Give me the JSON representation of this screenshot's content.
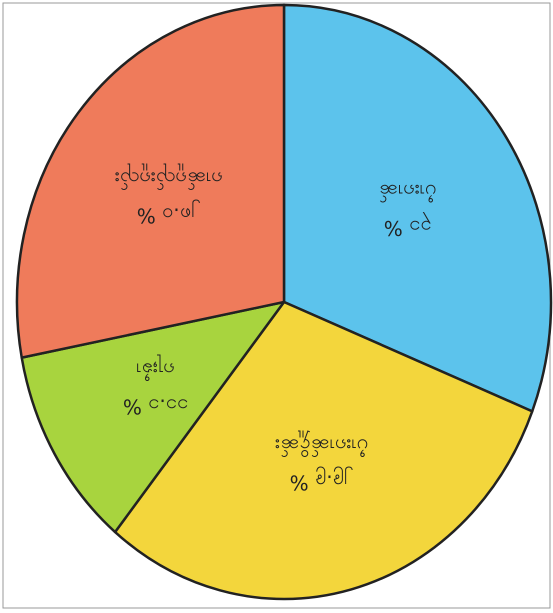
{
  "chart_data": {
    "type": "pie",
    "categories": [
      "ပၢႆးၵၢၼ်",
      "ပၢႆးၵၢၼ်ႁိူၼ်း",
      "ၵႃႈၶၢႆ",
      "ၵၢၼ်ၵူၺ်းၵူၺ်း"
    ],
    "values": [
      31,
      29.9,
      11.1,
      28.0
    ],
    "value_labels": [
      "၃၁ %",
      "၂၉.၉ %",
      "၁၁.၁ %",
      "၂၈.၀ %"
    ],
    "colors": [
      "#5cc3ec",
      "#f3d63c",
      "#a8d43e",
      "#ef7b5b"
    ]
  }
}
